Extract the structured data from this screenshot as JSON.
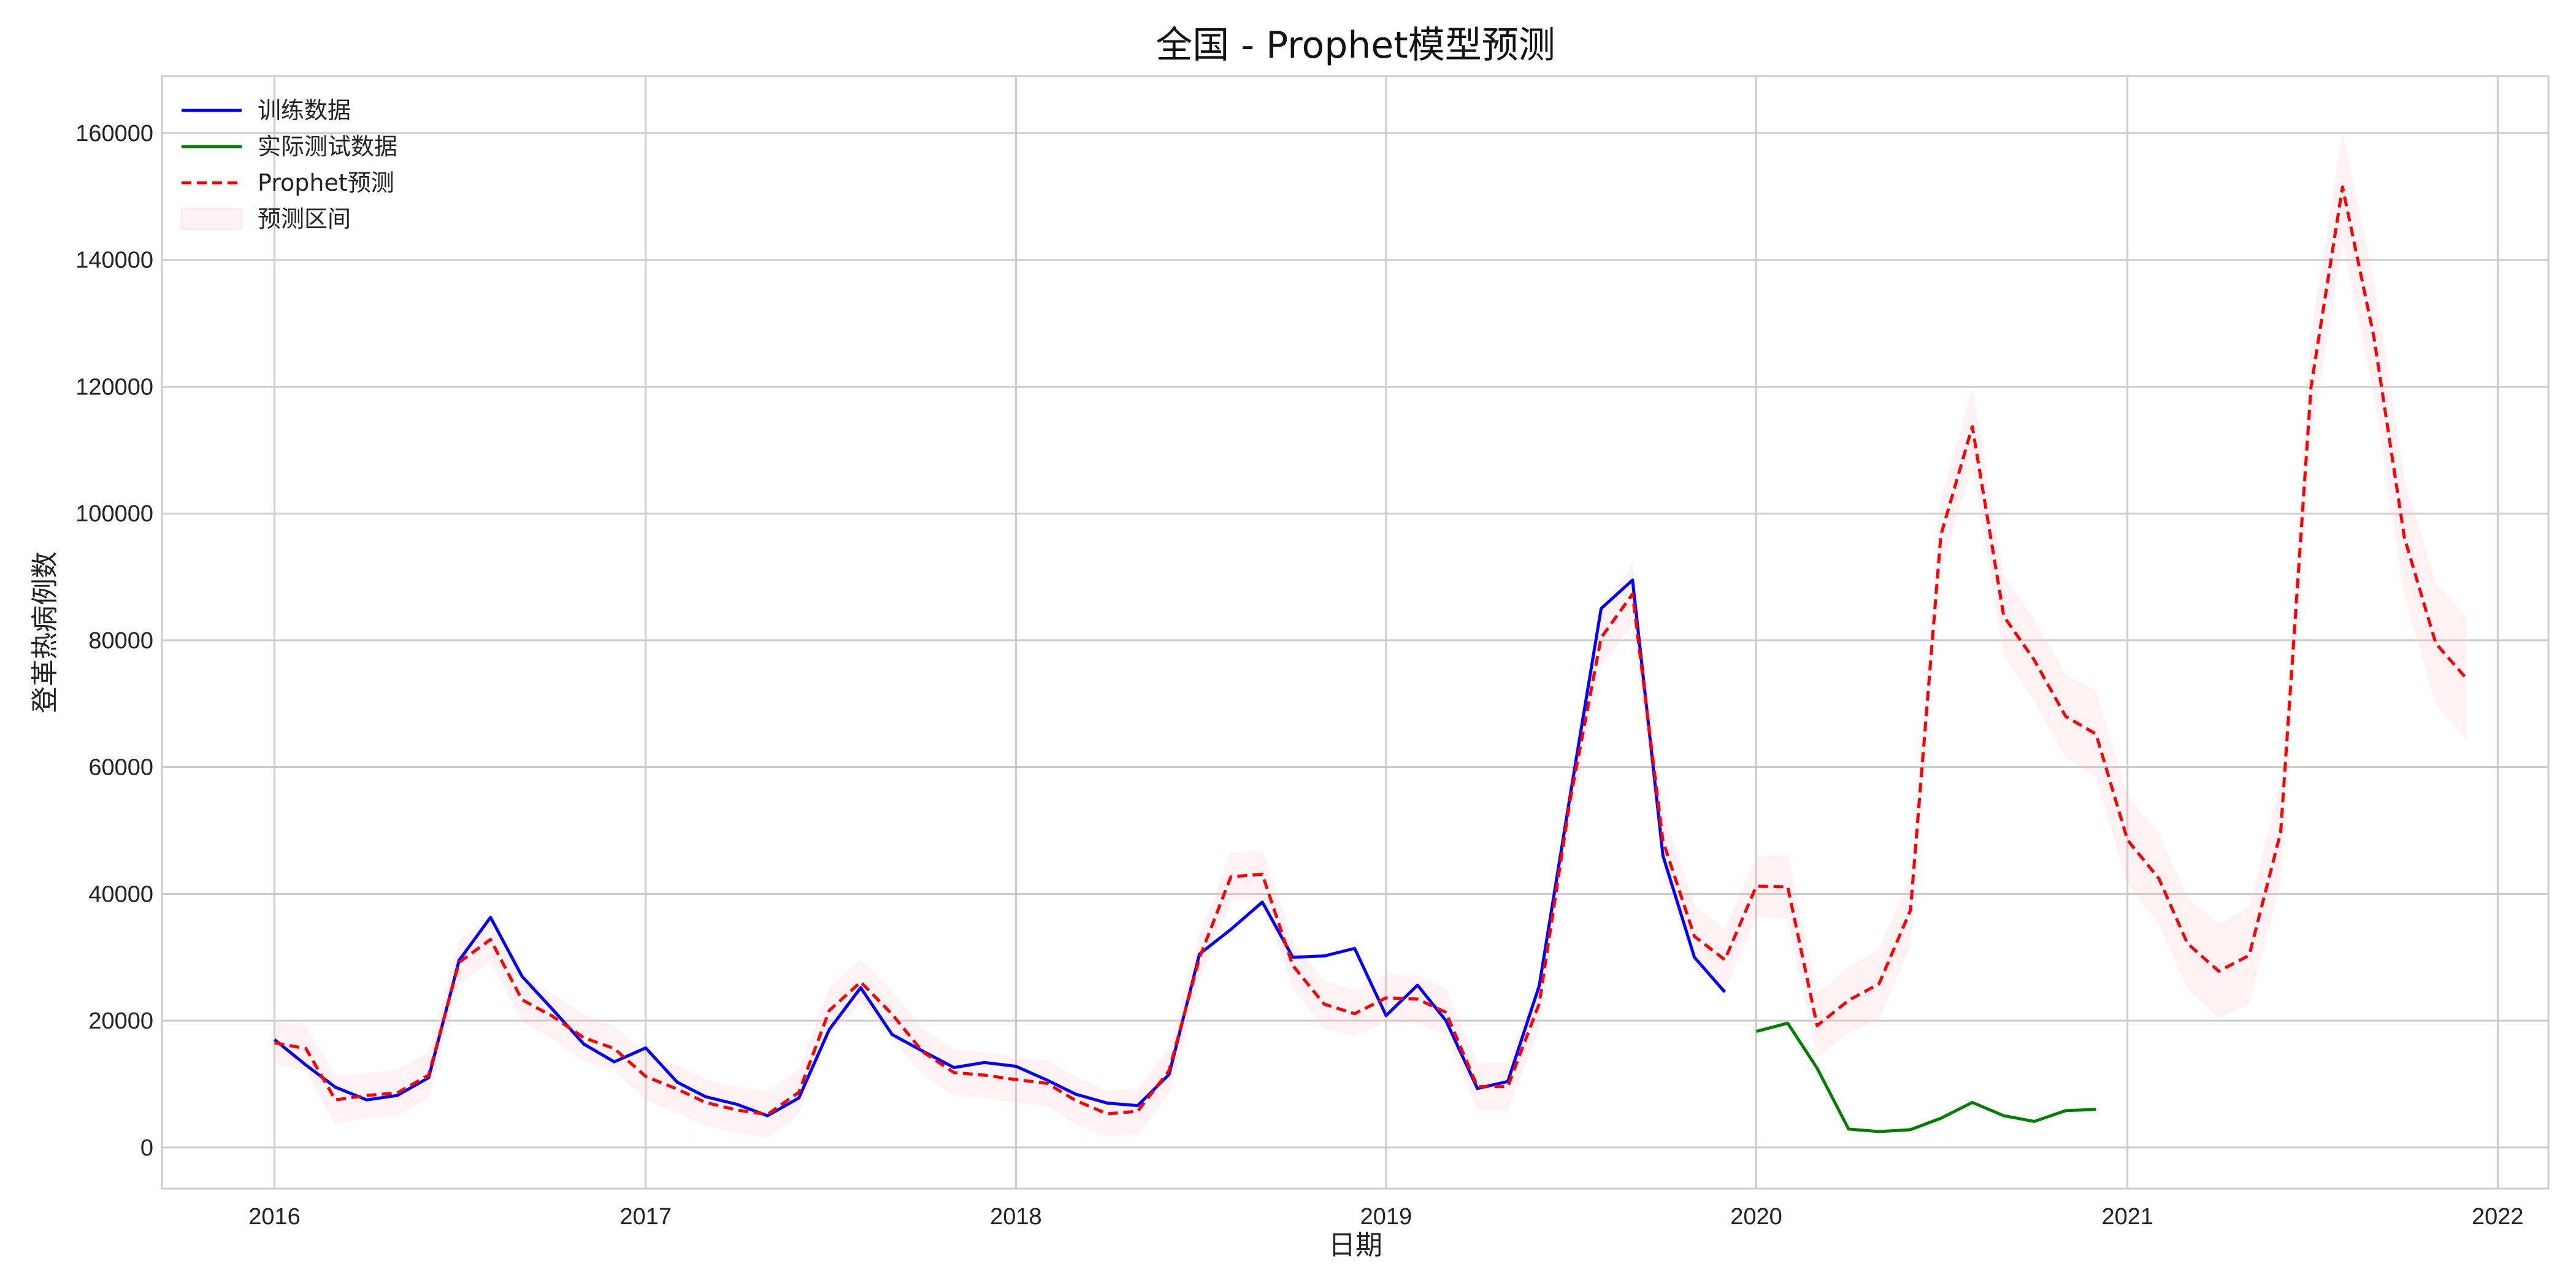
{
  "chart_data": {
    "type": "line",
    "title": "全国 - Prophet模型预测",
    "xlabel": "日期",
    "ylabel": "登革热病例数",
    "xlim": [
      "2015-09-12",
      "2022-02-20"
    ],
    "ylim": [
      -6500,
      169000
    ],
    "x_ticks": [
      "2016",
      "2017",
      "2018",
      "2019",
      "2020",
      "2021",
      "2022"
    ],
    "y_ticks": [
      0,
      20000,
      40000,
      60000,
      80000,
      100000,
      120000,
      140000,
      160000
    ],
    "grid": true,
    "legend_position": "top-left",
    "colors": {
      "train": "#0000ff",
      "test": "#008000",
      "forecast": "#ff0000",
      "interval": "#ffc0cb"
    },
    "legend": [
      "训练数据",
      "实际测试数据",
      "Prophet预测",
      "预测区间"
    ],
    "series": [
      {
        "name": "训练数据",
        "start": "2016-01",
        "values": [
          17000,
          13000,
          9500,
          7500,
          8200,
          11000,
          29500,
          36300,
          27000,
          21800,
          16300,
          13500,
          15700,
          10300,
          8000,
          6800,
          5000,
          7800,
          18600,
          25200,
          17800,
          15200,
          12600,
          13400,
          12800,
          10600,
          8400,
          7000,
          6600,
          11500,
          30500,
          34400,
          38700,
          30000,
          30200,
          31400,
          20800,
          25600,
          20000,
          9300,
          10400,
          25500,
          55000,
          85000,
          89500,
          46000,
          30000,
          24500
        ]
      },
      {
        "name": "实际测试数据",
        "start": "2020-01",
        "values": [
          18300,
          19600,
          12500,
          2900,
          2500,
          2800,
          4600,
          7100,
          5000,
          4100,
          5800,
          6000
        ]
      },
      {
        "name": "Prophet预测",
        "start": "2016-01",
        "values": [
          16500,
          15600,
          7500,
          8200,
          8600,
          11400,
          29200,
          32800,
          23300,
          20700,
          17300,
          15600,
          11200,
          9200,
          7100,
          5900,
          5200,
          8700,
          21600,
          26100,
          21000,
          15100,
          11800,
          11400,
          10700,
          10100,
          7400,
          5300,
          5700,
          12100,
          29900,
          42700,
          43100,
          28700,
          22600,
          21100,
          23600,
          23400,
          21300,
          9600,
          9600,
          22700,
          54400,
          80400,
          87300,
          48300,
          33300,
          29600,
          41200,
          41100,
          19200,
          23200,
          25800,
          37400,
          96600,
          113700,
          83800,
          76900,
          68000,
          65200,
          48500,
          42400,
          32200,
          27800,
          30300,
          49700,
          120000,
          151500,
          127800,
          96200,
          79500,
          74000
        ]
      },
      {
        "name": "预测区间",
        "start": "2016-01",
        "lower": [
          13200,
          12000,
          3700,
          4700,
          5000,
          7800,
          25800,
          29300,
          19800,
          17200,
          13600,
          12100,
          7600,
          5500,
          3500,
          2300,
          1600,
          5200,
          18000,
          22600,
          17400,
          11500,
          8200,
          7800,
          7100,
          6500,
          3700,
          1700,
          2100,
          8500,
          26400,
          38900,
          39400,
          25000,
          18900,
          17500,
          19900,
          19700,
          17600,
          5900,
          5800,
          18900,
          50400,
          75900,
          82600,
          43600,
          28500,
          24800,
          36400,
          36100,
          14100,
          18000,
          20400,
          31900,
          90800,
          107700,
          77600,
          70500,
          61500,
          58400,
          41600,
          35300,
          25000,
          20400,
          22700,
          41800,
          111800,
          142900,
          118900,
          87000,
          70000,
          64300
        ],
        "upper": [
          19800,
          19200,
          11300,
          11700,
          12200,
          15000,
          32600,
          36300,
          26800,
          24200,
          20900,
          19100,
          14800,
          12900,
          10700,
          9500,
          8800,
          12200,
          25200,
          29600,
          24600,
          18700,
          15400,
          15000,
          14300,
          13700,
          11100,
          8900,
          9300,
          15700,
          33400,
          46500,
          46800,
          32400,
          26300,
          24700,
          27300,
          27100,
          25000,
          13300,
          13400,
          26500,
          58400,
          84900,
          92000,
          53000,
          38100,
          34400,
          46000,
          46100,
          24300,
          28400,
          31200,
          42900,
          102400,
          119700,
          90000,
          83300,
          74500,
          72000,
          55400,
          49500,
          39400,
          35200,
          37900,
          57600,
          128200,
          160100,
          136700,
          105400,
          89000,
          83700
        ]
      }
    ]
  }
}
